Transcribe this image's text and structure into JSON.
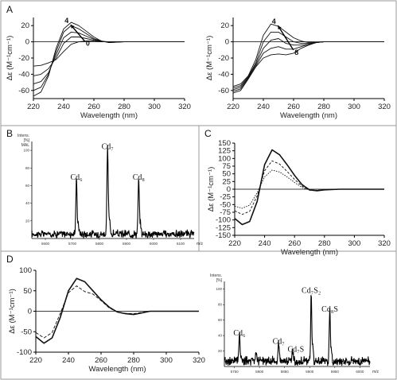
{
  "panel_labels": {
    "A": "A",
    "B": "B",
    "C": "C",
    "D": "D"
  },
  "chart_data": [
    {
      "id": "A1",
      "type": "line",
      "xlabel": "Wavelength (nm)",
      "ylabel": "Δε (M⁻¹cm⁻¹)",
      "xlim": [
        220,
        320
      ],
      "ylim": [
        -70,
        30
      ],
      "xticks": [
        220,
        240,
        260,
        280,
        300,
        320
      ],
      "yticks": [
        20,
        0,
        -20,
        -40,
        -60
      ],
      "annotations": [
        {
          "text": "4",
          "x": 242,
          "y": 23
        },
        {
          "text": "0",
          "x": 256,
          "y": -5
        }
      ],
      "series": [
        {
          "x": [
            220,
            225,
            230,
            235,
            240,
            245,
            250,
            255,
            260,
            265,
            270,
            275,
            280,
            290,
            300,
            320
          ],
          "y": [
            -30,
            -29,
            -26,
            -22,
            -12,
            -3,
            0,
            1,
            1,
            0.5,
            0,
            0,
            0,
            0,
            0,
            0
          ]
        },
        {
          "x": [
            220,
            225,
            230,
            235,
            240,
            245,
            250,
            255,
            260,
            265,
            270,
            275,
            280,
            290,
            300,
            320
          ],
          "y": [
            -42,
            -40,
            -33,
            -20,
            -2,
            6,
            6,
            4,
            2,
            0.5,
            0,
            0,
            0,
            0,
            0,
            0
          ]
        },
        {
          "x": [
            220,
            225,
            230,
            235,
            240,
            245,
            250,
            255,
            260,
            265,
            270,
            275,
            280,
            290,
            300,
            320
          ],
          "y": [
            -52,
            -49,
            -38,
            -16,
            5,
            12,
            11,
            7,
            3,
            0.5,
            -0.5,
            0,
            0,
            0,
            0,
            0
          ]
        },
        {
          "x": [
            220,
            225,
            230,
            235,
            240,
            245,
            250,
            255,
            260,
            265,
            270,
            275,
            280,
            290,
            300,
            320
          ],
          "y": [
            -60,
            -56,
            -40,
            -12,
            12,
            20,
            16,
            10,
            4,
            1,
            -1,
            -0.5,
            0,
            0,
            0,
            0
          ]
        },
        {
          "x": [
            220,
            225,
            230,
            235,
            240,
            245,
            250,
            255,
            260,
            265,
            270,
            275,
            280,
            290,
            300,
            320
          ],
          "y": [
            -67,
            -62,
            -42,
            -8,
            16,
            24,
            20,
            13,
            6,
            1,
            -1,
            -0.5,
            0,
            0,
            0,
            0
          ]
        }
      ]
    },
    {
      "id": "A2",
      "type": "line",
      "xlabel": "Wavelength (nm)",
      "ylabel": "Δε (M⁻¹cm⁻¹)",
      "xlim": [
        220,
        320
      ],
      "ylim": [
        -70,
        30
      ],
      "xticks": [
        220,
        240,
        260,
        280,
        300,
        320
      ],
      "yticks": [
        20,
        0,
        -20,
        -40,
        -60
      ],
      "annotations": [
        {
          "text": "4",
          "x": 247,
          "y": 22
        },
        {
          "text": "8",
          "x": 262,
          "y": -16
        }
      ],
      "series": [
        {
          "x": [
            220,
            225,
            230,
            235,
            240,
            245,
            250,
            255,
            260,
            265,
            270,
            275,
            280,
            290,
            300,
            320
          ],
          "y": [
            -55,
            -52,
            -42,
            -22,
            8,
            22,
            19,
            12,
            5,
            1,
            -1,
            -0.5,
            0,
            0,
            0,
            0
          ]
        },
        {
          "x": [
            220,
            225,
            230,
            235,
            240,
            245,
            250,
            255,
            260,
            265,
            270,
            275,
            280,
            290,
            300,
            320
          ],
          "y": [
            -57,
            -54,
            -43,
            -26,
            0,
            12,
            12,
            6,
            0,
            -2,
            -2,
            -1,
            0,
            0,
            0,
            0
          ]
        },
        {
          "x": [
            220,
            225,
            230,
            235,
            240,
            245,
            250,
            255,
            260,
            265,
            270,
            275,
            280,
            290,
            300,
            320
          ],
          "y": [
            -59,
            -56,
            -44,
            -28,
            -8,
            2,
            4,
            -2,
            -4,
            -4,
            -3,
            -1,
            0,
            0,
            0,
            0
          ]
        },
        {
          "x": [
            220,
            225,
            230,
            235,
            240,
            245,
            250,
            255,
            260,
            265,
            270,
            275,
            280,
            290,
            300,
            320
          ],
          "y": [
            -61,
            -58,
            -45,
            -30,
            -14,
            -8,
            -6,
            -9,
            -9,
            -6,
            -3,
            -1,
            0,
            0,
            0,
            0
          ]
        },
        {
          "x": [
            220,
            225,
            230,
            235,
            240,
            245,
            250,
            255,
            260,
            265,
            270,
            275,
            280,
            290,
            300,
            320
          ],
          "y": [
            -63,
            -60,
            -46,
            -31,
            -20,
            -16,
            -15,
            -16,
            -14,
            -8,
            -4,
            -1,
            0,
            0,
            0,
            0
          ]
        }
      ]
    },
    {
      "id": "B",
      "type": "line",
      "xlabel": "m/z",
      "ylabel": "Intens.\n[%]\nMAL",
      "xlim": [
        5550,
        6150
      ],
      "ylim": [
        0,
        110
      ],
      "xticks": [
        5600,
        5700,
        5800,
        5900,
        6000,
        6100
      ],
      "yticks": [
        100,
        80,
        60,
        40,
        20
      ],
      "peaks": [
        {
          "label": "Cd₆",
          "x": 5715,
          "height": 62
        },
        {
          "label": "Cd₇",
          "x": 5830,
          "height": 97
        },
        {
          "label": "Cd₈",
          "x": 5945,
          "height": 62
        }
      ]
    },
    {
      "id": "C",
      "type": "line",
      "xlabel": "Wavelength (nm)",
      "ylabel": "Δε (M⁻¹cm⁻¹)",
      "xlim": [
        220,
        320
      ],
      "ylim": [
        -150,
        150
      ],
      "xticks": [
        220,
        240,
        260,
        280,
        300,
        320
      ],
      "yticks": [
        150,
        125,
        100,
        75,
        50,
        25,
        0,
        -25,
        -50,
        -75,
        -100,
        -125,
        -150
      ],
      "series": [
        {
          "x": [
            220,
            225,
            230,
            235,
            240,
            245,
            250,
            255,
            260,
            265,
            270,
            275,
            280,
            290,
            300,
            320
          ],
          "y": [
            -95,
            -115,
            -105,
            -40,
            80,
            128,
            112,
            80,
            45,
            15,
            -2,
            -5,
            -2,
            0,
            0,
            0
          ]
        },
        {
          "x": [
            220,
            225,
            230,
            235,
            240,
            245,
            250,
            255,
            260,
            265,
            270,
            275,
            280,
            290,
            300,
            320
          ],
          "y": [
            -70,
            -82,
            -72,
            -22,
            60,
            92,
            82,
            58,
            32,
            10,
            -3,
            -4,
            -2,
            0,
            0,
            0
          ]
        },
        {
          "x": [
            220,
            225,
            230,
            235,
            240,
            245,
            250,
            255,
            260,
            265,
            270,
            275,
            280,
            290,
            300,
            320
          ],
          "y": [
            -55,
            -62,
            -52,
            -12,
            40,
            62,
            56,
            40,
            22,
            6,
            -3,
            -3,
            -1,
            0,
            0,
            0
          ]
        }
      ]
    },
    {
      "id": "D1",
      "type": "line",
      "xlabel": "Wavelength (nm)",
      "ylabel": "Δε (M⁻¹cm⁻¹)",
      "xlim": [
        220,
        320
      ],
      "ylim": [
        -100,
        100
      ],
      "xticks": [
        220,
        240,
        260,
        280,
        300,
        320
      ],
      "yticks": [
        100,
        50,
        0,
        -50,
        -100
      ],
      "series": [
        {
          "x": [
            220,
            225,
            230,
            235,
            240,
            245,
            250,
            255,
            260,
            265,
            270,
            275,
            280,
            285,
            290,
            300,
            320
          ],
          "y": [
            -62,
            -78,
            -65,
            -15,
            50,
            80,
            72,
            50,
            28,
            10,
            -2,
            -6,
            -8,
            -4,
            0,
            0,
            0
          ],
          "dash": false
        },
        {
          "x": [
            220,
            225,
            230,
            235,
            240,
            245,
            250,
            255,
            260,
            265,
            270,
            275,
            280,
            285,
            290,
            300,
            320
          ],
          "y": [
            -52,
            -65,
            -52,
            -5,
            45,
            62,
            48,
            42,
            26,
            8,
            -2,
            -5,
            -6,
            -3,
            0,
            0,
            0
          ],
          "dash": true
        }
      ]
    },
    {
      "id": "D2",
      "type": "line",
      "xlabel": "m/z",
      "ylabel": "Intens.\n[%]",
      "xlim": [
        5730,
        6020
      ],
      "ylim": [
        0,
        110
      ],
      "xticks": [
        5750,
        5800,
        5850,
        5900,
        5950,
        6000
      ],
      "yticks": [
        100,
        80,
        60,
        40,
        20
      ],
      "peaks": [
        {
          "label": "Cd₆",
          "x": 5760,
          "height": 35
        },
        {
          "label": "",
          "x": 5793,
          "height": 14
        },
        {
          "label": "Cd₇",
          "x": 5838,
          "height": 24
        },
        {
          "label": "Cd₇S",
          "x": 5866,
          "height": 14
        },
        {
          "label": "Cd₇S₂",
          "x": 5903,
          "height": 90
        },
        {
          "label": "Cd₈S",
          "x": 5940,
          "height": 66
        }
      ]
    }
  ]
}
